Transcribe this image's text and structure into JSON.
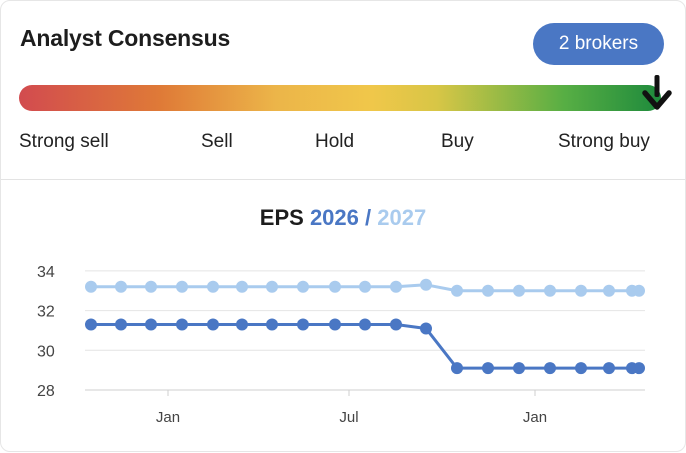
{
  "consensus": {
    "title": "Analyst Consensus",
    "brokers_label": "2 brokers",
    "scale": [
      "Strong sell",
      "Sell",
      "Hold",
      "Buy",
      "Strong buy"
    ],
    "rating_position": 1.0,
    "colors": {
      "badge": "#4a77c4",
      "marker": "#111111"
    }
  },
  "eps": {
    "title": "EPS",
    "year1": "2026",
    "separator": "/",
    "year2": "2027"
  },
  "chart_data": {
    "type": "line",
    "x_ticks": [
      "Jan",
      "Jul",
      "Jan"
    ],
    "y_ticks": [
      28,
      30,
      32,
      34
    ],
    "ylim": [
      28,
      34.6
    ],
    "grid": true,
    "series": [
      {
        "name": "2026",
        "color": "#4a77c4",
        "values": [
          31.3,
          31.3,
          31.3,
          31.3,
          31.3,
          31.3,
          31.3,
          31.3,
          31.3,
          31.3,
          31.3,
          31.1,
          29.1,
          29.1,
          29.1,
          29.1,
          29.1,
          29.1,
          29.1,
          29.1
        ]
      },
      {
        "name": "2027",
        "color": "#a9cbee",
        "values": [
          33.2,
          33.2,
          33.2,
          33.2,
          33.2,
          33.2,
          33.2,
          33.2,
          33.2,
          33.2,
          33.2,
          33.3,
          33.0,
          33.0,
          33.0,
          33.0,
          33.0,
          33.0,
          33.0,
          33.0
        ]
      }
    ]
  }
}
